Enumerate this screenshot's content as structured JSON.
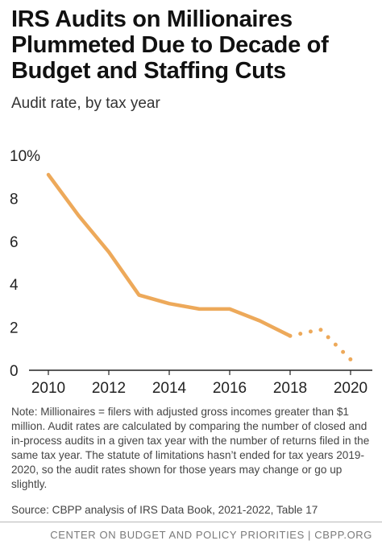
{
  "title": "IRS Audits on Millionaires Plummeted Due to Decade of Budget and Staffing Cuts",
  "subtitle": "Audit rate, by tax year",
  "note": "Note: Millionaires = filers with adjusted gross incomes greater than $1 million. Audit rates are calculated by comparing the number of closed and in-process audits in a given tax year with the number of returns filed in the same tax year. The statute of limitations hasn’t ended for tax years 2019-2020, so the audit rates shown for those years may change or go up slightly.",
  "source": "Source: CBPP analysis of IRS Data Book, 2021-2022, Table 17",
  "footer": "CENTER ON BUDGET AND POLICY PRIORITIES | CBPP.ORG",
  "colors": {
    "line": "#EDA95A",
    "axis": "#222222",
    "text": "#222222"
  },
  "chart_data": {
    "type": "line",
    "title": "IRS Audits on Millionaires Plummeted Due to Decade of Budget and Staffing Cuts",
    "subtitle": "Audit rate, by tax year",
    "xlabel": "",
    "ylabel": "",
    "xlim": [
      2010,
      2020
    ],
    "ylim": [
      0,
      10
    ],
    "x_ticks": [
      2010,
      2012,
      2014,
      2016,
      2018,
      2020
    ],
    "x_tick_labels": [
      "2010",
      "2012",
      "2014",
      "2016",
      "2018",
      "2020"
    ],
    "y_ticks": [
      0,
      2,
      4,
      6,
      8,
      10
    ],
    "y_tick_labels": [
      "0",
      "2",
      "4",
      "6",
      "8",
      "10%"
    ],
    "grid": false,
    "series": [
      {
        "style": "solid",
        "x": [
          2010,
          2011,
          2012,
          2013,
          2014,
          2015,
          2016,
          2017,
          2018
        ],
        "y": [
          9.1,
          7.2,
          5.5,
          3.5,
          3.1,
          2.85,
          2.85,
          2.3,
          1.6
        ]
      },
      {
        "style": "dotted",
        "x": [
          2018,
          2019,
          2020
        ],
        "y": [
          1.6,
          1.9,
          0.5
        ]
      }
    ]
  }
}
